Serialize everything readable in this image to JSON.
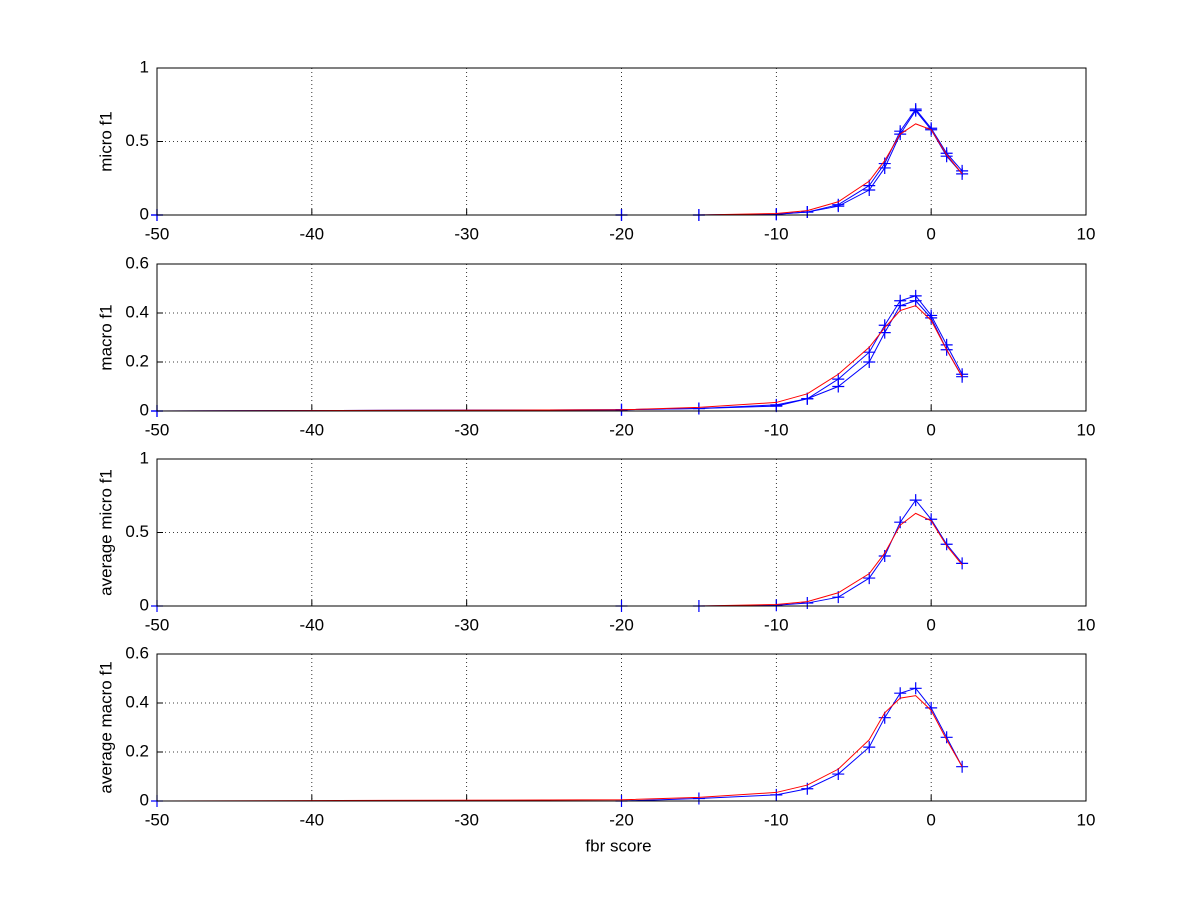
{
  "chart_data": [
    {
      "type": "line",
      "ylabel": "micro f1",
      "x": [
        -50,
        -20,
        -15,
        -10,
        -8,
        -6,
        -4,
        -3,
        -2,
        -1,
        0,
        1,
        2
      ],
      "xlim": [
        -50,
        10
      ],
      "xticks": [
        -50,
        -40,
        -30,
        -20,
        -10,
        0,
        10
      ],
      "ylim": [
        0,
        1
      ],
      "yticks": [
        0,
        0.5,
        1
      ],
      "grid": true,
      "series": [
        {
          "color": "#0000ff",
          "markers": true,
          "values": [
            0,
            0,
            0,
            0.005,
            0.02,
            0.06,
            0.17,
            0.32,
            0.55,
            0.71,
            0.58,
            0.4,
            0.28
          ]
        },
        {
          "color": "#0000ff",
          "markers": true,
          "values": [
            0,
            0,
            0,
            0.005,
            0.02,
            0.07,
            0.2,
            0.35,
            0.57,
            0.72,
            0.59,
            0.42,
            0.3
          ]
        },
        {
          "color": "#ff0000",
          "markers": false,
          "values": [
            0,
            0,
            0,
            0.01,
            0.03,
            0.09,
            0.23,
            0.37,
            0.55,
            0.62,
            0.58,
            0.41,
            0.28
          ]
        }
      ]
    },
    {
      "type": "line",
      "ylabel": "macro f1",
      "x": [
        -50,
        -20,
        -15,
        -10,
        -8,
        -6,
        -4,
        -3,
        -2,
        -1,
        0,
        1,
        2
      ],
      "xlim": [
        -50,
        10
      ],
      "xticks": [
        -50,
        -40,
        -30,
        -20,
        -10,
        0,
        10
      ],
      "ylim": [
        0,
        0.6
      ],
      "yticks": [
        0,
        0.2,
        0.4,
        0.6
      ],
      "grid": true,
      "series": [
        {
          "color": "#0000ff",
          "markers": true,
          "values": [
            0,
            0.005,
            0.01,
            0.02,
            0.05,
            0.1,
            0.2,
            0.32,
            0.43,
            0.45,
            0.38,
            0.25,
            0.14
          ]
        },
        {
          "color": "#0000ff",
          "markers": true,
          "values": [
            0,
            0.005,
            0.01,
            0.025,
            0.05,
            0.13,
            0.24,
            0.35,
            0.45,
            0.47,
            0.39,
            0.27,
            0.15
          ]
        },
        {
          "color": "#ff0000",
          "markers": false,
          "values": [
            0,
            0.005,
            0.015,
            0.035,
            0.07,
            0.15,
            0.26,
            0.34,
            0.41,
            0.43,
            0.37,
            0.25,
            0.14
          ]
        }
      ]
    },
    {
      "type": "line",
      "ylabel": "average micro f1",
      "x": [
        -50,
        -20,
        -15,
        -10,
        -8,
        -6,
        -4,
        -3,
        -2,
        -1,
        0,
        1,
        2
      ],
      "xlim": [
        -50,
        10
      ],
      "xticks": [
        -50,
        -40,
        -30,
        -20,
        -10,
        0,
        10
      ],
      "ylim": [
        0,
        1
      ],
      "yticks": [
        0,
        0.5,
        1
      ],
      "grid": true,
      "series": [
        {
          "color": "#0000ff",
          "markers": true,
          "values": [
            0,
            0,
            0,
            0.005,
            0.02,
            0.06,
            0.19,
            0.34,
            0.57,
            0.72,
            0.59,
            0.42,
            0.29
          ]
        },
        {
          "color": "#ff0000",
          "markers": false,
          "values": [
            0,
            0,
            0,
            0.01,
            0.03,
            0.09,
            0.22,
            0.36,
            0.55,
            0.63,
            0.58,
            0.41,
            0.28
          ]
        }
      ]
    },
    {
      "type": "line",
      "ylabel": "average macro f1",
      "xlabel": "fbr score",
      "x": [
        -50,
        -20,
        -15,
        -10,
        -8,
        -6,
        -4,
        -3,
        -2,
        -1,
        0,
        1,
        2
      ],
      "xlim": [
        -50,
        10
      ],
      "xticks": [
        -50,
        -40,
        -30,
        -20,
        -10,
        0,
        10
      ],
      "ylim": [
        0,
        0.6
      ],
      "yticks": [
        0,
        0.2,
        0.4,
        0.6
      ],
      "grid": true,
      "series": [
        {
          "color": "#0000ff",
          "markers": true,
          "values": [
            0,
            0,
            0.01,
            0.025,
            0.05,
            0.11,
            0.22,
            0.34,
            0.44,
            0.46,
            0.38,
            0.26,
            0.14
          ]
        },
        {
          "color": "#ff0000",
          "markers": false,
          "values": [
            0,
            0.005,
            0.015,
            0.035,
            0.065,
            0.13,
            0.25,
            0.36,
            0.42,
            0.43,
            0.37,
            0.25,
            0.14
          ]
        }
      ]
    }
  ]
}
